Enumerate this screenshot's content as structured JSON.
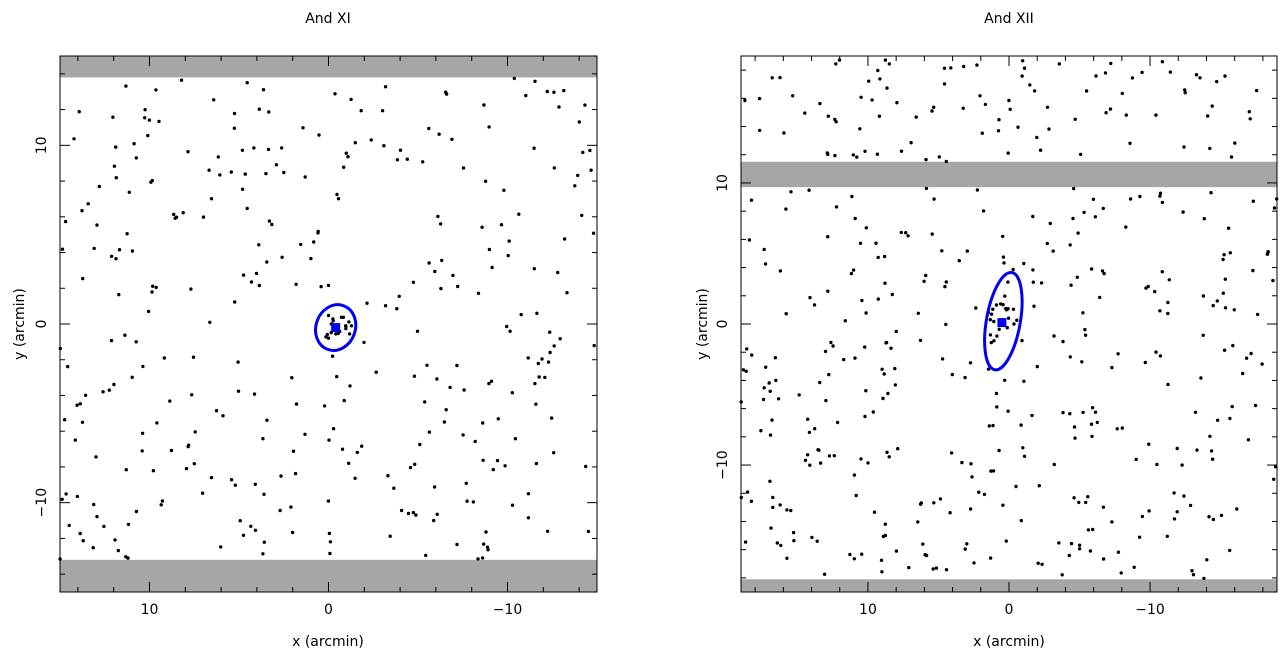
{
  "chart_data": [
    {
      "type": "scatter",
      "title": "And XI",
      "xlabel": "x (arcmin)",
      "ylabel": "y (arcmin)",
      "xlim": [
        15,
        -15
      ],
      "ylim": [
        -15,
        15
      ],
      "xticks": [
        10,
        0,
        -10
      ],
      "xtick_labels": [
        "10",
        "0",
        "−10"
      ],
      "yticks": [
        10,
        0,
        -10
      ],
      "ytick_labels": [
        "10",
        "0",
        "−10"
      ],
      "masked_bands": [
        {
          "y_from": 13.8,
          "y_to": 15
        },
        {
          "y_from": -15,
          "y_to": -13.2
        }
      ],
      "center": {
        "x": -0.4,
        "y": -0.2
      },
      "ellipse": {
        "x": -0.4,
        "y": -0.2,
        "semi_major": 1.3,
        "semi_minor": 1.1,
        "pa_deg": 110
      },
      "scatter_count": 330,
      "seed": 1101
    },
    {
      "type": "scatter",
      "title": "And XII",
      "xlabel": "x (arcmin)",
      "ylabel": "y (arcmin)",
      "xlim": [
        19,
        -19
      ],
      "ylim": [
        -19,
        19
      ],
      "xticks": [
        10,
        0,
        -10
      ],
      "xtick_labels": [
        "10",
        "0",
        "−10"
      ],
      "yticks": [
        10,
        0,
        -10
      ],
      "ytick_labels": [
        "10",
        "0",
        "−10"
      ],
      "masked_bands": [
        {
          "y_from": 9.7,
          "y_to": 11.5
        },
        {
          "y_from": -19,
          "y_to": -18.1
        }
      ],
      "center": {
        "x": 0.5,
        "y": 0.1
      },
      "ellipse": {
        "x": 0.4,
        "y": 0.2,
        "semi_major": 3.5,
        "semi_minor": 1.2,
        "pa_deg": 100
      },
      "scatter_count": 440,
      "seed": 1202
    }
  ],
  "colors": {
    "mask": "#a6a6a6",
    "points": "#000000",
    "highlight": "#0000ee"
  }
}
